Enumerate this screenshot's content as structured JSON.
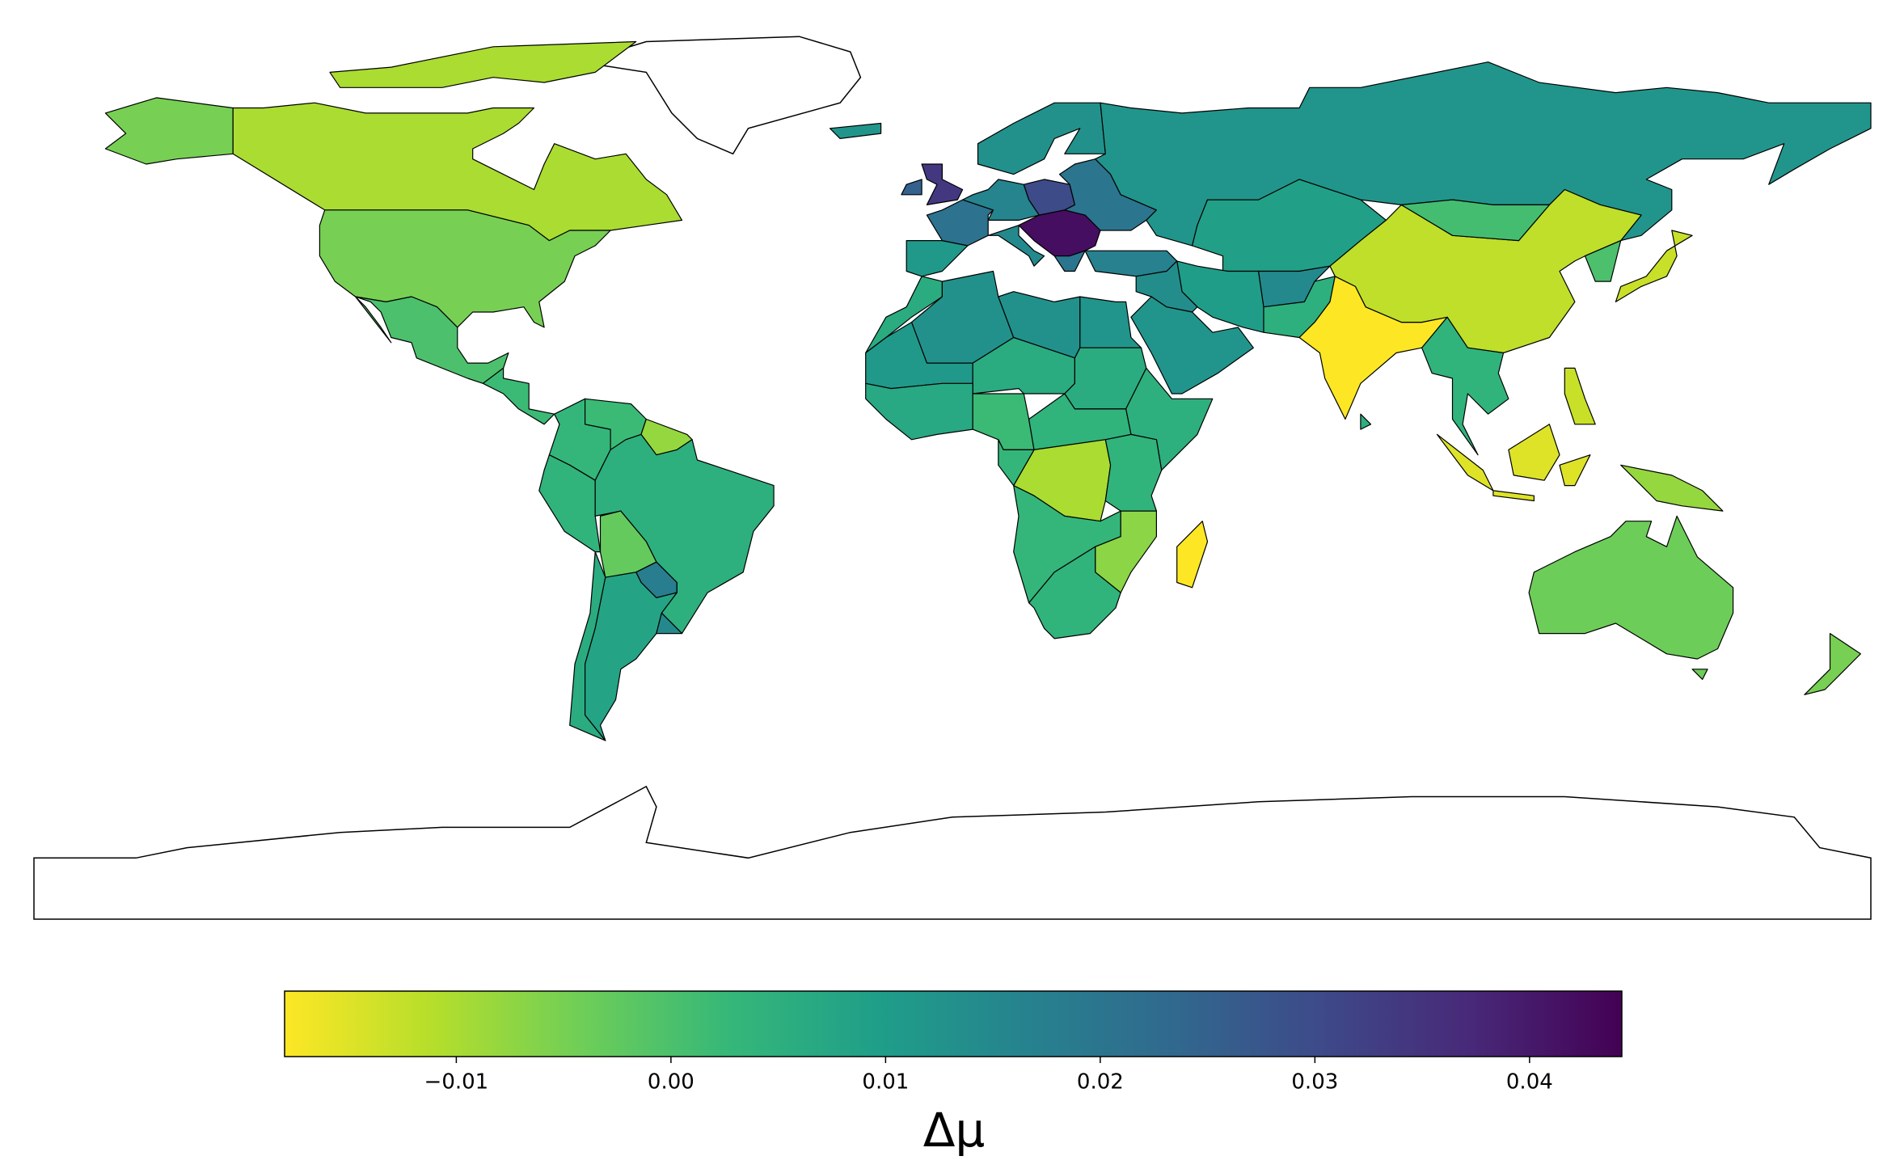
{
  "chart_data": {
    "type": "choropleth",
    "values": [
      -0.01,
      -0.005,
      0.0,
      0.002,
      0.003,
      0.002,
      -0.008,
      0.004,
      0.005,
      -0.003,
      0.018,
      0.006,
      0.008,
      0.015,
      0.006,
      0.013,
      0.013,
      0.012,
      0.011,
      0.006,
      0.006,
      0.005,
      0.007,
      0.002,
      0.004,
      -0.01,
      0.003,
      0.004,
      0.003,
      -0.007,
      0.004,
      -0.018,
      0.011,
      0.021,
      0.034,
      0.025,
      0.015,
      0.016,
      0.03,
      0.042,
      0.02,
      0.013,
      0.02,
      0.017,
      0.012,
      0.009,
      0.01,
      0.014,
      0.012,
      0.015,
      0.005,
      -0.018,
      -0.012,
      0.001,
      0.004,
      0.0,
      -0.013,
      -0.015,
      -0.008,
      -0.013,
      -0.004,
      -0.005,
      0.005,
      0.012
    ],
    "colors": [
      "#fde725",
      "#b5de2b",
      "#6ece58",
      "#35b779",
      "#1f9e89",
      "#26828e",
      "#31688e",
      "#3e4989",
      "#482878",
      "#440154"
    ],
    "colorbar": {
      "label": "Δμ",
      "lim": [
        -0.018,
        0.0443
      ],
      "ticks": [
        {
          "value": -0.01,
          "label": "−0.01"
        },
        {
          "value": 0,
          "label": "0.00"
        },
        0.01,
        0.02,
        0.03,
        0.04
      ]
    }
  }
}
